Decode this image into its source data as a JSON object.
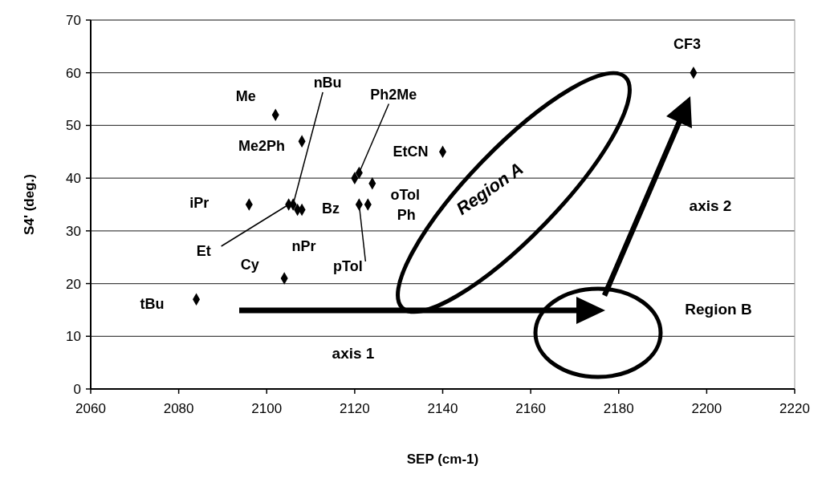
{
  "chart_data": {
    "type": "scatter",
    "xlabel": "SEP (cm-1)",
    "ylabel": "S4' (deg.)",
    "xlim": [
      2060,
      2220
    ],
    "xticks": [
      2060,
      2080,
      2100,
      2120,
      2140,
      2160,
      2180,
      2200,
      2220
    ],
    "ylim": [
      0,
      70
    ],
    "yticks": [
      0,
      10,
      20,
      30,
      40,
      50,
      60,
      70
    ],
    "grid": "y",
    "marker": "diamond",
    "series": [
      {
        "color": "#000000",
        "x": [
          2102,
          2108,
          2096,
          2105,
          2106,
          2108,
          2107,
          2104,
          2084,
          2121,
          2120,
          2124,
          2121,
          2123,
          2140,
          2197
        ],
        "values": [
          52,
          47,
          35,
          35,
          35,
          34,
          34,
          21,
          17,
          41,
          40,
          39,
          35,
          35,
          45,
          60
        ]
      }
    ],
    "annotations": [
      {
        "text": "Me",
        "x": 2102,
        "y": 52
      },
      {
        "text": "Me2Ph",
        "x": 2108,
        "y": 47
      },
      {
        "text": "iPr",
        "x": 2096,
        "y": 35
      },
      {
        "text": "Et",
        "x": 2105,
        "y": 35
      },
      {
        "text": "nBu",
        "x": 2106,
        "y": 35
      },
      {
        "text": "Bz",
        "x": 2108,
        "y": 34
      },
      {
        "text": "nPr",
        "x": 2107,
        "y": 34
      },
      {
        "text": "Cy",
        "x": 2104,
        "y": 21
      },
      {
        "text": "tBu",
        "x": 2084,
        "y": 17
      },
      {
        "text": "Ph2Me",
        "x": 2121,
        "y": 41
      },
      {
        "text": "oTol",
        "x": 2124,
        "y": 39
      },
      {
        "text": "pTol",
        "x": 2121,
        "y": 35
      },
      {
        "text": "Ph",
        "x": 2123,
        "y": 35
      },
      {
        "text": "EtCN",
        "x": 2140,
        "y": 45
      },
      {
        "text": "CF3",
        "x": 2197,
        "y": 60
      },
      "Region A",
      "Region B",
      "axis 1",
      "axis 2"
    ]
  }
}
